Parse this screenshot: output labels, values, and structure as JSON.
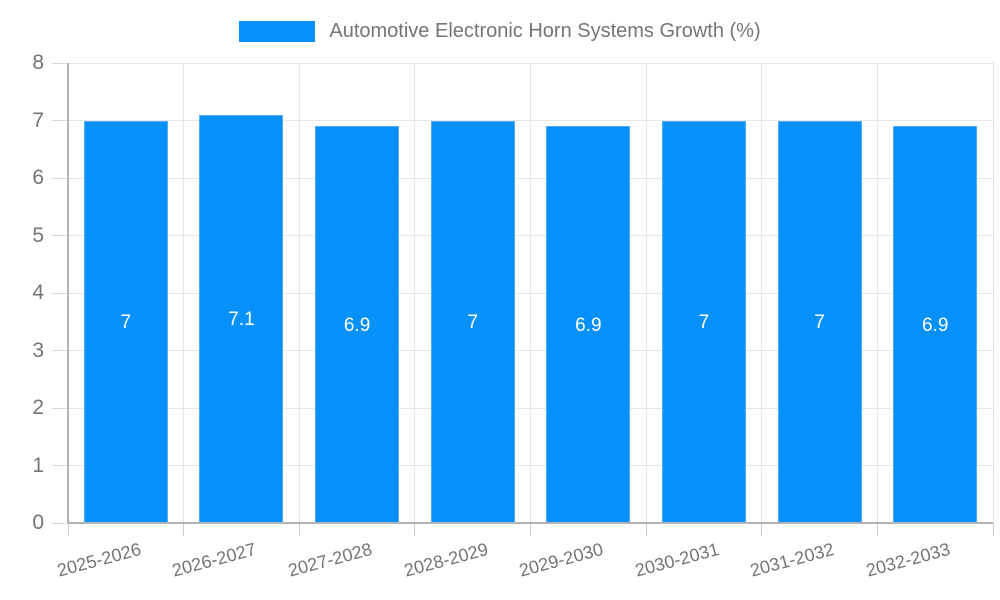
{
  "chart_data": {
    "type": "bar",
    "title": "Automotive Electronic Horn Systems Growth (%)",
    "xlabel": "",
    "ylabel": "",
    "categories": [
      "2025-2026",
      "2026-2027",
      "2027-2028",
      "2028-2029",
      "2029-2030",
      "2030-2031",
      "2031-2032",
      "2032-2033"
    ],
    "values": [
      7,
      7.1,
      6.9,
      7,
      6.9,
      7,
      7,
      6.9
    ],
    "value_labels": [
      "7",
      "7.1",
      "6.9",
      "7",
      "6.9",
      "7",
      "7",
      "6.9"
    ],
    "ylim": [
      0,
      8
    ],
    "yticks": [
      0,
      1,
      2,
      3,
      4,
      5,
      6,
      7,
      8
    ],
    "grid": true,
    "legend_position": "top",
    "colors": {
      "bar_fill": "#0590fa",
      "bar_border": "#54adf7",
      "value_label": "#ffffff",
      "gridline": "#e6e6e6",
      "axis_line": "#b3b3b3",
      "tick": "#cccccc",
      "tick_label": "#757575",
      "legend_text": "#757575"
    }
  }
}
